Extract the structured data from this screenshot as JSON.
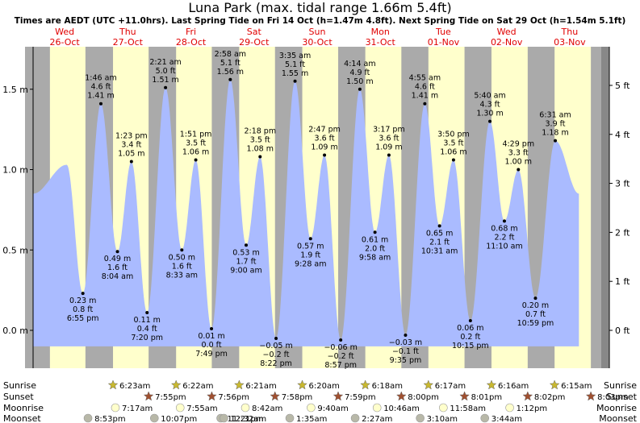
{
  "title": "Luna Park (max. tidal range 1.66m 5.4ft)",
  "subtitle": "Times are AEDT (UTC +11.0hrs). Last Spring Tide on Fri 14 Oct (h=1.47m 4.8ft). Next Spring Tide on Sat 29 Oct (h=1.54m 5.1ft)",
  "colors": {
    "title": "#000000",
    "subtitle": "#000000",
    "day_label": "#e00000",
    "day_band": "#ffffcc",
    "night_band": "#aaaaaa",
    "tide_fill": "#aabbff",
    "margin_band": "#888888"
  },
  "days": [
    {
      "dow": "Wed",
      "date": "26-Oct"
    },
    {
      "dow": "Thu",
      "date": "27-Oct"
    },
    {
      "dow": "Fri",
      "date": "28-Oct"
    },
    {
      "dow": "Sat",
      "date": "29-Oct"
    },
    {
      "dow": "Sun",
      "date": "30-Oct"
    },
    {
      "dow": "Mon",
      "date": "31-Oct"
    },
    {
      "dow": "Tue",
      "date": "01-Nov"
    },
    {
      "dow": "Wed",
      "date": "02-Nov"
    },
    {
      "dow": "Thu",
      "date": "03-Nov"
    }
  ],
  "chart_data": {
    "type": "area",
    "title": "Luna Park (max. tidal range 1.66m 5.4ft)",
    "y_left": {
      "label": "",
      "unit": "m",
      "lim": [
        -0.2,
        1.7
      ],
      "ticks": [
        0.0,
        0.5,
        1.0,
        1.5
      ],
      "tick_labels": [
        "0.0 m",
        "0.5 m",
        "1.0 m",
        "1.5 m"
      ]
    },
    "y_right": {
      "label": "",
      "unit": "ft",
      "ticks": [
        0,
        1,
        2,
        3,
        4,
        5
      ],
      "tick_labels": [
        "0 ft",
        "1 ft",
        "2 ft",
        "3 ft",
        "4 ft",
        "5 ft"
      ]
    },
    "x_range_hours": [
      0,
      216
    ],
    "start_level_m": 0.85,
    "end_level_m": 0.85,
    "extremes": [
      {
        "day": 0,
        "hour": 18.92,
        "height_m": 0.23,
        "m": "0.23 m",
        "ft": "0.8 ft",
        "time": "6:55 pm",
        "type": "low"
      },
      {
        "day": 1,
        "hour": 1.77,
        "height_m": 1.41,
        "m": "1.41 m",
        "ft": "4.6 ft",
        "time": "1:46 am",
        "type": "high"
      },
      {
        "day": 1,
        "hour": 8.07,
        "height_m": 0.49,
        "m": "0.49 m",
        "ft": "1.6 ft",
        "time": "8:04 am",
        "type": "low"
      },
      {
        "day": 1,
        "hour": 13.38,
        "height_m": 1.05,
        "m": "1.05 m",
        "ft": "3.4 ft",
        "time": "1:23 pm",
        "type": "high"
      },
      {
        "day": 1,
        "hour": 19.33,
        "height_m": 0.11,
        "m": "0.11 m",
        "ft": "0.4 ft",
        "time": "7:20 pm",
        "type": "low"
      },
      {
        "day": 2,
        "hour": 2.35,
        "height_m": 1.51,
        "m": "1.51 m",
        "ft": "5.0 ft",
        "time": "2:21 am",
        "type": "high"
      },
      {
        "day": 2,
        "hour": 8.55,
        "height_m": 0.5,
        "m": "0.50 m",
        "ft": "1.6 ft",
        "time": "8:33 am",
        "type": "low"
      },
      {
        "day": 2,
        "hour": 13.85,
        "height_m": 1.06,
        "m": "1.06 m",
        "ft": "3.5 ft",
        "time": "1:51 pm",
        "type": "high"
      },
      {
        "day": 2,
        "hour": 19.82,
        "height_m": 0.01,
        "m": "0.01 m",
        "ft": "0.0 ft",
        "time": "7:49 pm",
        "type": "low"
      },
      {
        "day": 3,
        "hour": 2.97,
        "height_m": 1.56,
        "m": "1.56 m",
        "ft": "5.1 ft",
        "time": "2:58 am",
        "type": "high"
      },
      {
        "day": 3,
        "hour": 9.0,
        "height_m": 0.53,
        "m": "0.53 m",
        "ft": "1.7 ft",
        "time": "9:00 am",
        "type": "low"
      },
      {
        "day": 3,
        "hour": 14.3,
        "height_m": 1.08,
        "m": "1.08 m",
        "ft": "3.5 ft",
        "time": "2:18 pm",
        "type": "high"
      },
      {
        "day": 3,
        "hour": 20.37,
        "height_m": -0.05,
        "m": "−0.05 m",
        "ft": "−0.2 ft",
        "time": "8:22 pm",
        "type": "low"
      },
      {
        "day": 4,
        "hour": 3.58,
        "height_m": 1.55,
        "m": "1.55 m",
        "ft": "5.1 ft",
        "time": "3:35 am",
        "type": "high"
      },
      {
        "day": 4,
        "hour": 9.47,
        "height_m": 0.57,
        "m": "0.57 m",
        "ft": "1.9 ft",
        "time": "9:28 am",
        "type": "low"
      },
      {
        "day": 4,
        "hour": 14.78,
        "height_m": 1.09,
        "m": "1.09 m",
        "ft": "3.6 ft",
        "time": "2:47 pm",
        "type": "high"
      },
      {
        "day": 4,
        "hour": 20.95,
        "height_m": -0.06,
        "m": "−0.06 m",
        "ft": "−0.2 ft",
        "time": "8:57 pm",
        "type": "low"
      },
      {
        "day": 5,
        "hour": 4.23,
        "height_m": 1.5,
        "m": "1.50 m",
        "ft": "4.9 ft",
        "time": "4:14 am",
        "type": "high"
      },
      {
        "day": 5,
        "hour": 9.97,
        "height_m": 0.61,
        "m": "0.61 m",
        "ft": "2.0 ft",
        "time": "9:58 am",
        "type": "low"
      },
      {
        "day": 5,
        "hour": 15.28,
        "height_m": 1.09,
        "m": "1.09 m",
        "ft": "3.6 ft",
        "time": "3:17 pm",
        "type": "high"
      },
      {
        "day": 5,
        "hour": 21.58,
        "height_m": -0.03,
        "m": "−0.03 m",
        "ft": "−0.1 ft",
        "time": "9:35 pm",
        "type": "low"
      },
      {
        "day": 6,
        "hour": 4.92,
        "height_m": 1.41,
        "m": "1.41 m",
        "ft": "4.6 ft",
        "time": "4:55 am",
        "type": "high"
      },
      {
        "day": 6,
        "hour": 10.52,
        "height_m": 0.65,
        "m": "0.65 m",
        "ft": "2.1 ft",
        "time": "10:31 am",
        "type": "low"
      },
      {
        "day": 6,
        "hour": 15.83,
        "height_m": 1.06,
        "m": "1.06 m",
        "ft": "3.5 ft",
        "time": "3:50 pm",
        "type": "high"
      },
      {
        "day": 6,
        "hour": 22.25,
        "height_m": 0.06,
        "m": "0.06 m",
        "ft": "0.2 ft",
        "time": "10:15 pm",
        "type": "low"
      },
      {
        "day": 7,
        "hour": 5.67,
        "height_m": 1.3,
        "m": "1.30 m",
        "ft": "4.3 ft",
        "time": "5:40 am",
        "type": "high"
      },
      {
        "day": 7,
        "hour": 11.17,
        "height_m": 0.68,
        "m": "0.68 m",
        "ft": "2.2 ft",
        "time": "11:10 am",
        "type": "low"
      },
      {
        "day": 7,
        "hour": 16.48,
        "height_m": 1.0,
        "m": "1.00 m",
        "ft": "3.3 ft",
        "time": "4:29 pm",
        "type": "high"
      },
      {
        "day": 7,
        "hour": 22.98,
        "height_m": 0.2,
        "m": "0.20 m",
        "ft": "0.7 ft",
        "time": "10:59 pm",
        "type": "low"
      },
      {
        "day": 8,
        "hour": 6.52,
        "height_m": 1.18,
        "m": "1.18 m",
        "ft": "3.9 ft",
        "time": "6:31 am",
        "type": "high"
      }
    ],
    "first_high_peak": {
      "day": 0,
      "hour": 12.8,
      "height_m": 1.03
    }
  },
  "astro": {
    "row_labels": {
      "sunrise": "Sunrise",
      "sunset": "Sunset",
      "moonrise": "Moonrise",
      "moonset": "Moonset"
    },
    "sunrise": [
      null,
      "6:23am",
      "6:22am",
      "6:21am",
      "6:20am",
      "6:18am",
      "6:17am",
      "6:16am",
      "6:15am"
    ],
    "sunset": [
      null,
      "7:55pm",
      "7:56pm",
      "7:58pm",
      "7:59pm",
      "8:00pm",
      "8:01pm",
      "8:02pm",
      "8:03pm"
    ],
    "moonrise": [
      null,
      "7:17am",
      "7:55am",
      "8:42am",
      "9:40am",
      "10:46am",
      "11:58am",
      "1:12pm",
      null
    ],
    "moonset": [
      "8:53pm",
      "10:07pm",
      "11:21pm",
      "12:32am",
      "1:35am",
      "2:27am",
      "3:10am",
      "3:44am",
      null
    ]
  }
}
